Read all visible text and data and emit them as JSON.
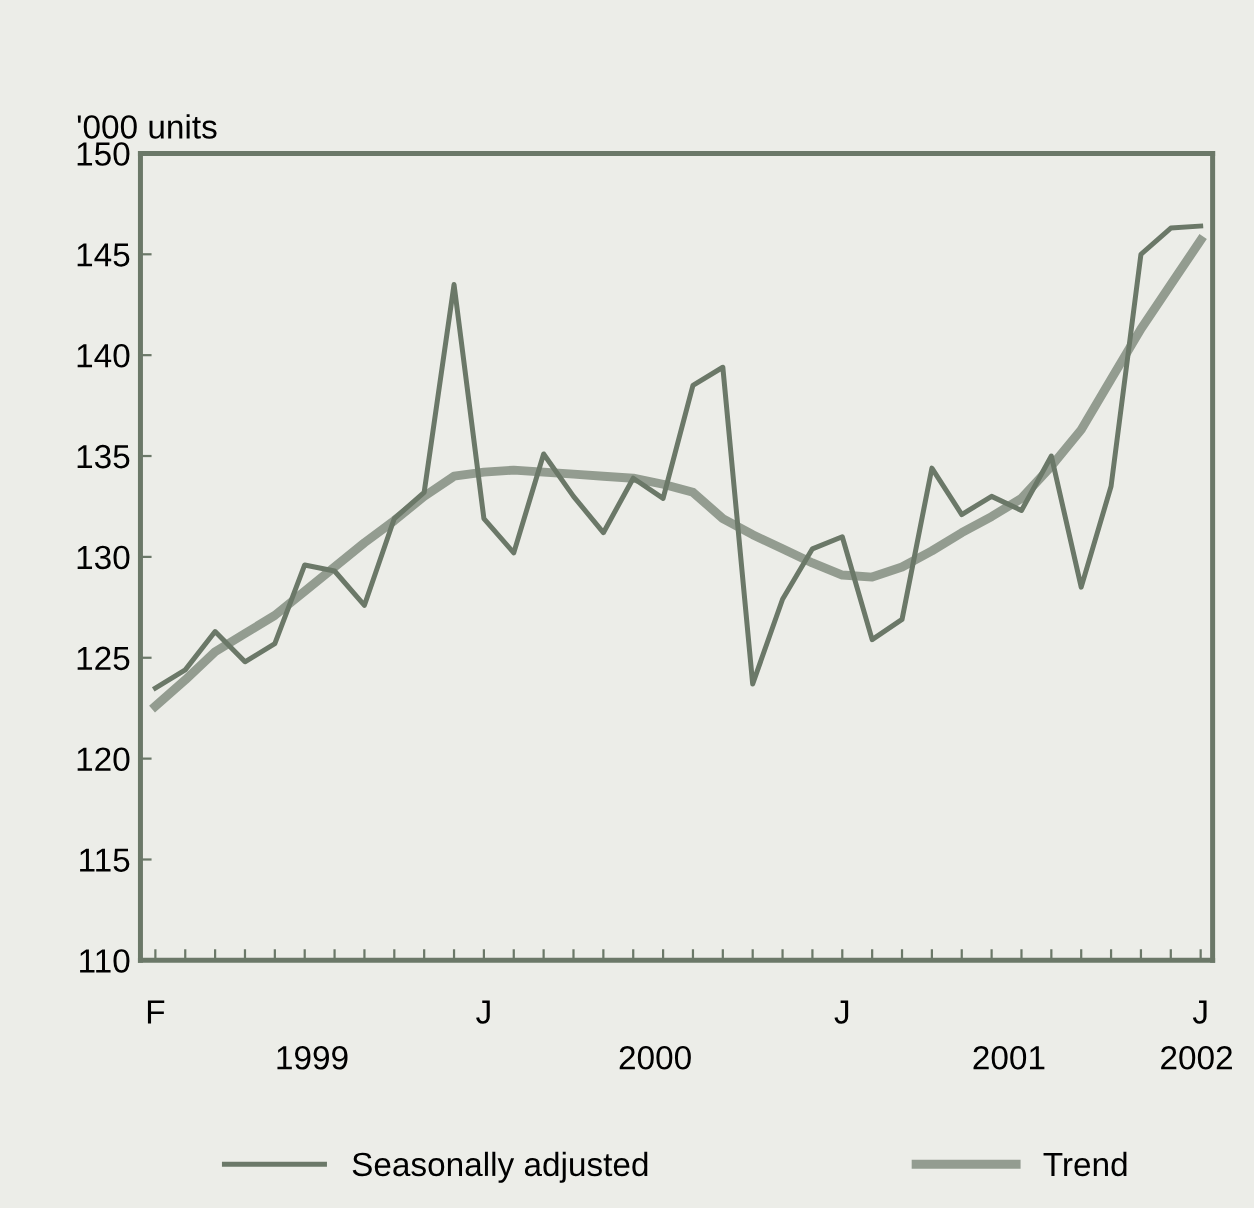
{
  "chart_data": {
    "type": "line",
    "ylabel": "'000 units",
    "categories": [
      "F",
      null,
      null,
      null,
      null,
      null,
      null,
      null,
      null,
      null,
      null,
      "J",
      null,
      null,
      null,
      null,
      null,
      null,
      null,
      null,
      null,
      null,
      null,
      "J",
      null,
      null,
      null,
      null,
      null,
      null,
      null,
      null,
      null,
      null,
      null,
      "J"
    ],
    "series": [
      {
        "name": "Seasonally adjusted",
        "color": "#6b7868",
        "values": [
          123.5,
          124.4,
          126.3,
          124.8,
          125.7,
          129.6,
          129.3,
          127.6,
          131.9,
          133.2,
          143.5,
          131.9,
          130.2,
          135.1,
          133.0,
          131.2,
          133.9,
          132.9,
          138.5,
          139.4,
          123.7,
          127.9,
          130.4,
          131.0,
          125.9,
          126.9,
          134.4,
          132.1,
          133.0,
          132.3,
          135.0,
          128.5,
          133.5,
          145.0,
          146.3,
          146.4
        ]
      },
      {
        "name": "Trend",
        "color": "#939c90",
        "values": [
          122.6,
          123.9,
          125.3,
          126.2,
          127.1,
          128.3,
          129.5,
          130.7,
          131.8,
          133.0,
          134.0,
          134.2,
          134.3,
          134.2,
          134.1,
          134.0,
          133.9,
          133.6,
          133.2,
          131.9,
          131.1,
          130.4,
          129.7,
          129.1,
          129.0,
          129.5,
          130.3,
          131.2,
          132.0,
          132.9,
          134.5,
          136.3,
          138.8,
          141.3,
          143.5,
          145.7
        ]
      }
    ],
    "annotations": [
      "1999",
      "2000",
      "2001",
      "2002"
    ],
    "ylim": [
      110,
      150
    ],
    "yticks": [
      110,
      115,
      120,
      125,
      130,
      135,
      140,
      145,
      150
    ],
    "grid": false,
    "legend": "bottom",
    "marker": "none",
    "line_style": "solid"
  }
}
